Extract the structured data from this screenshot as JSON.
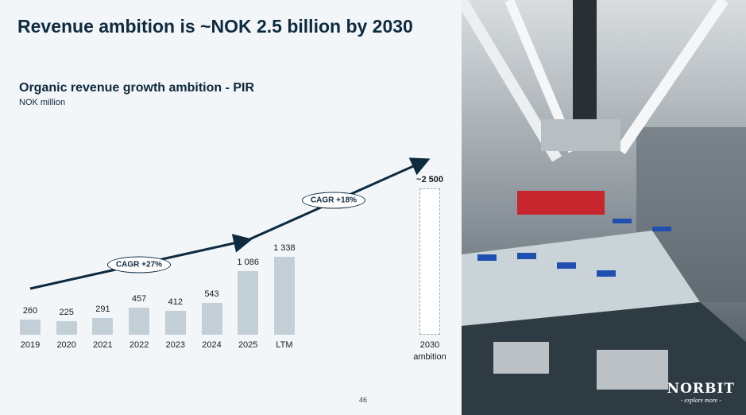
{
  "header": {
    "title": "Revenue ambition is ~NOK 2.5 billion by 2030"
  },
  "chart_data": {
    "type": "bar",
    "title": "Organic revenue growth ambition - PIR",
    "subtitle": "NOK million",
    "categories": [
      "2019",
      "2020",
      "2021",
      "2022",
      "2023",
      "2024",
      "2025",
      "LTM",
      "2030 ambition"
    ],
    "values": [
      260,
      225,
      291,
      457,
      412,
      543,
      1086,
      1338,
      2500
    ],
    "value_labels": [
      "260",
      "225",
      "291",
      "457",
      "412",
      "543",
      "1 086",
      "1 338",
      "~2 500"
    ],
    "color": "#c3cfd6",
    "annotations": [
      "CAGR +27%",
      "CAGR +18%"
    ]
  },
  "footer": {
    "page": "46"
  },
  "logo": {
    "name": "NORBIT",
    "tagline": "- explore more -"
  }
}
